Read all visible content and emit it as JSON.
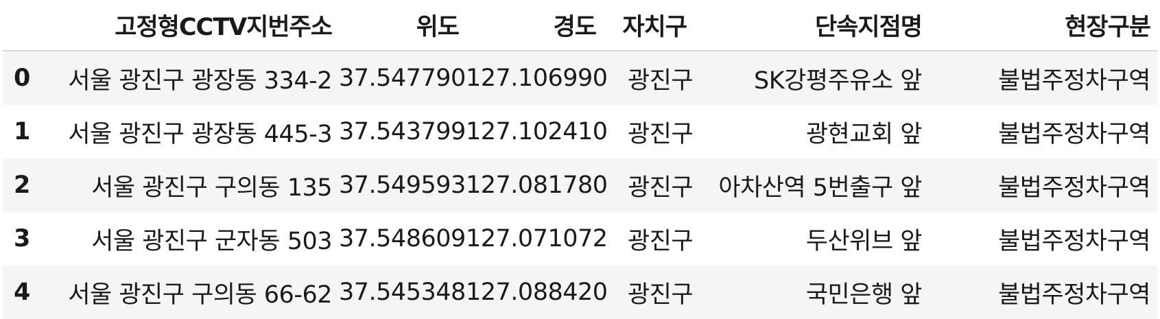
{
  "columns": [
    "",
    "고정형CCTV지번주소",
    "위도",
    "경도",
    "자치구",
    "단속지점명",
    "현장구분"
  ],
  "rows": [
    {
      "index": "0",
      "address": "서울 광진구 광장동 334-2",
      "lat": "37.547790",
      "lng": "127.106990",
      "gu": "광진구",
      "spot": "SK강평주유소 앞",
      "type": "불법주정차구역"
    },
    {
      "index": "1",
      "address": "서울 광진구 광장동 445-3",
      "lat": "37.543799",
      "lng": "127.102410",
      "gu": "광진구",
      "spot": "광현교회 앞",
      "type": "불법주정차구역"
    },
    {
      "index": "2",
      "address": "서울 광진구 구의동 135",
      "lat": "37.549593",
      "lng": "127.081780",
      "gu": "광진구",
      "spot": "아차산역 5번출구 앞",
      "type": "불법주정차구역"
    },
    {
      "index": "3",
      "address": "서울 광진구 군자동 503",
      "lat": "37.548609",
      "lng": "127.071072",
      "gu": "광진구",
      "spot": "두산위브 앞",
      "type": "불법주정차구역"
    },
    {
      "index": "4",
      "address": "서울 광진구 구의동 66-62",
      "lat": "37.545348",
      "lng": "127.088420",
      "gu": "광진구",
      "spot": "국민은행 앞",
      "type": "불법주정차구역"
    }
  ]
}
